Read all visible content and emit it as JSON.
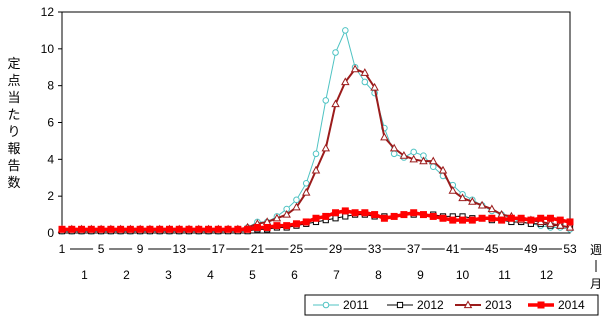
{
  "chart_data": {
    "type": "line",
    "ylabel": "定点当たり報告数",
    "xlabel_week": "週",
    "xlabel_month": "月",
    "ylim": [
      0,
      12
    ],
    "yticks": [
      0,
      2,
      4,
      6,
      8,
      10,
      12
    ],
    "xlim": [
      1,
      53
    ],
    "week_ticks": [
      1,
      5,
      9,
      13,
      17,
      21,
      25,
      29,
      33,
      37,
      41,
      45,
      49,
      53
    ],
    "week_tick_labels": [
      "1",
      "5",
      "9",
      "13",
      "17",
      "21",
      "25",
      "29",
      "33",
      "37",
      "41",
      "45",
      "49",
      "53"
    ],
    "month_labels": [
      "1",
      "2",
      "3",
      "4",
      "5",
      "6",
      "7",
      "8",
      "9",
      "10",
      "11",
      "12"
    ],
    "month_positions": [
      3.3,
      7.6,
      11.9,
      16.2,
      20.5,
      24.8,
      29.1,
      33.4,
      37.7,
      42.0,
      46.3,
      50.6
    ],
    "grid": false,
    "legend_position": "bottom-right",
    "series": [
      {
        "name": "2011",
        "color": "#4fc3c3",
        "marker": "circle",
        "values": [
          0.1,
          0.1,
          0.1,
          0.1,
          0.1,
          0.1,
          0.1,
          0.1,
          0.1,
          0.1,
          0.1,
          0.1,
          0.1,
          0.1,
          0.1,
          0.1,
          0.1,
          0.2,
          0.2,
          0.3,
          0.6,
          0.6,
          0.9,
          1.3,
          1.8,
          2.7,
          4.3,
          7.2,
          9.8,
          11.0,
          9.0,
          8.2,
          7.6,
          5.7,
          4.3,
          4.1,
          4.4,
          4.2,
          3.6,
          3.1,
          2.6,
          2.1,
          1.8,
          1.5,
          1.2,
          1.0,
          0.8,
          0.6,
          0.5,
          0.4,
          0.3,
          0.3,
          0.2
        ]
      },
      {
        "name": "2012",
        "color": "#000000",
        "marker": "square",
        "values": [
          0.1,
          0.1,
          0.1,
          0.1,
          0.1,
          0.1,
          0.1,
          0.1,
          0.1,
          0.1,
          0.1,
          0.1,
          0.1,
          0.1,
          0.1,
          0.1,
          0.1,
          0.1,
          0.1,
          0.1,
          0.2,
          0.2,
          0.3,
          0.3,
          0.4,
          0.5,
          0.6,
          0.7,
          0.8,
          0.9,
          1.0,
          1.0,
          0.9,
          0.9,
          0.9,
          1.0,
          1.0,
          1.0,
          1.0,
          0.9,
          0.9,
          0.9,
          0.8,
          0.8,
          0.7,
          0.7,
          0.6,
          0.6,
          0.5,
          0.5,
          0.4,
          0.4,
          0.3
        ]
      },
      {
        "name": "2013",
        "color": "#9b1b1b",
        "marker": "triangle",
        "values": [
          0.2,
          0.2,
          0.2,
          0.2,
          0.2,
          0.2,
          0.2,
          0.2,
          0.2,
          0.2,
          0.2,
          0.2,
          0.2,
          0.2,
          0.2,
          0.2,
          0.2,
          0.2,
          0.2,
          0.3,
          0.5,
          0.6,
          0.8,
          1.0,
          1.4,
          2.2,
          3.4,
          4.6,
          7.0,
          8.2,
          8.9,
          8.7,
          7.9,
          5.2,
          4.6,
          4.2,
          4.0,
          3.9,
          3.9,
          3.4,
          2.3,
          1.9,
          1.7,
          1.5,
          1.3,
          1.0,
          0.9,
          0.7,
          0.7,
          0.6,
          0.5,
          0.4,
          0.3
        ]
      },
      {
        "name": "2014",
        "color": "#ff0000",
        "marker": "square-filled",
        "values": [
          0.2,
          0.2,
          0.2,
          0.2,
          0.2,
          0.2,
          0.2,
          0.2,
          0.2,
          0.2,
          0.2,
          0.2,
          0.2,
          0.2,
          0.2,
          0.2,
          0.2,
          0.2,
          0.2,
          0.2,
          0.3,
          0.3,
          0.4,
          0.4,
          0.5,
          0.6,
          0.8,
          0.9,
          1.1,
          1.2,
          1.1,
          1.1,
          1.0,
          0.8,
          0.9,
          1.0,
          1.1,
          1.0,
          0.9,
          0.8,
          0.7,
          0.7,
          0.7,
          0.8,
          0.8,
          0.7,
          0.8,
          0.8,
          0.7,
          0.8,
          0.8,
          0.7,
          0.6
        ]
      }
    ]
  }
}
